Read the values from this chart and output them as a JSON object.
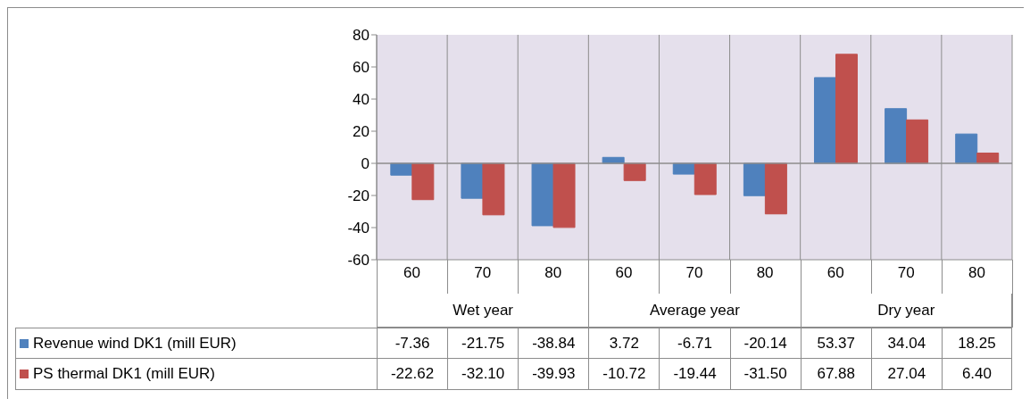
{
  "chart_data": {
    "type": "bar",
    "categories": [
      "60",
      "70",
      "80",
      "60",
      "70",
      "80",
      "60",
      "70",
      "80"
    ],
    "series": [
      {
        "name": "Revenue wind DK1  (mill EUR)",
        "color": "#4f81bd",
        "values": [
          -7.36,
          -21.75,
          -38.84,
          3.72,
          -6.71,
          -20.14,
          53.37,
          34.04,
          18.25
        ],
        "value_labels": [
          "-7.36",
          "-21.75",
          "-38.84",
          "3.72",
          "-6.71",
          "-20.14",
          "53.37",
          "34.04",
          "18.25"
        ]
      },
      {
        "name": "PS thermal DK1  (mill EUR)",
        "color": "#c0504d",
        "values": [
          -22.62,
          -32.1,
          -39.93,
          -10.72,
          -19.44,
          -31.5,
          67.88,
          27.04,
          6.4
        ],
        "value_labels": [
          "-22.62",
          "-32.10",
          "-39.93",
          "-10.72",
          "-19.44",
          "-31.50",
          "67.88",
          "27.04",
          "6.40"
        ]
      }
    ],
    "annotations": [
      "Wet year",
      "Average year",
      "Dry year"
    ],
    "ylim": [
      -60,
      80
    ],
    "yticks": [
      -60,
      -40,
      -20,
      0,
      20,
      40,
      60,
      80
    ],
    "grid": "x",
    "legend": "bottom"
  }
}
